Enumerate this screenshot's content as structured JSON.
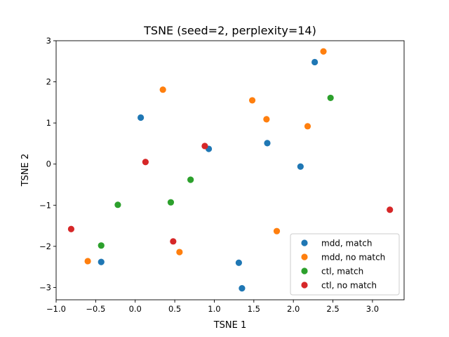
{
  "chart_data": {
    "type": "scatter",
    "title": "TSNE (seed=2, perplexity=14)",
    "xlabel": "TSNE 1",
    "ylabel": "TSNE 2",
    "xlim": [
      -1.0,
      3.4
    ],
    "ylim": [
      -3.3,
      3.0
    ],
    "xticks": [
      -1.0,
      -0.5,
      0.0,
      0.5,
      1.0,
      1.5,
      2.0,
      2.5,
      3.0
    ],
    "xtick_labels": [
      "−1.0",
      "−0.5",
      "0.0",
      "0.5",
      "1.0",
      "1.5",
      "2.0",
      "2.5",
      "3.0"
    ],
    "yticks": [
      3,
      2,
      1,
      0,
      -1,
      -2,
      -3
    ],
    "ytick_labels": [
      "3",
      "2",
      "1",
      "0",
      "−1",
      "−2",
      "−3"
    ],
    "grid": false,
    "legend_position": "lower-right",
    "series": [
      {
        "name": "mdd, match",
        "color": "#1f77b4",
        "points": [
          [
            2.27,
            2.48
          ],
          [
            0.07,
            1.13
          ],
          [
            0.93,
            0.37
          ],
          [
            1.67,
            0.51
          ],
          [
            2.09,
            -0.06
          ],
          [
            -0.43,
            -2.38
          ],
          [
            1.31,
            -2.4
          ],
          [
            1.35,
            -3.02
          ]
        ]
      },
      {
        "name": "mdd, no match",
        "color": "#ff7f0e",
        "points": [
          [
            2.38,
            2.74
          ],
          [
            0.35,
            1.81
          ],
          [
            1.48,
            1.55
          ],
          [
            1.66,
            1.09
          ],
          [
            2.18,
            0.92
          ],
          [
            1.79,
            -1.63
          ],
          [
            0.56,
            -2.14
          ],
          [
            -0.6,
            -2.36
          ]
        ]
      },
      {
        "name": "ctl, match",
        "color": "#2ca02c",
        "points": [
          [
            2.47,
            1.61
          ],
          [
            0.7,
            -0.38
          ],
          [
            -0.22,
            -0.99
          ],
          [
            0.45,
            -0.93
          ],
          [
            -0.43,
            -1.98
          ]
        ]
      },
      {
        "name": "ctl, no match",
        "color": "#d62728",
        "points": [
          [
            0.88,
            0.44
          ],
          [
            0.13,
            0.05
          ],
          [
            -0.81,
            -1.58
          ],
          [
            0.48,
            -1.88
          ],
          [
            3.22,
            -1.11
          ]
        ]
      }
    ]
  }
}
